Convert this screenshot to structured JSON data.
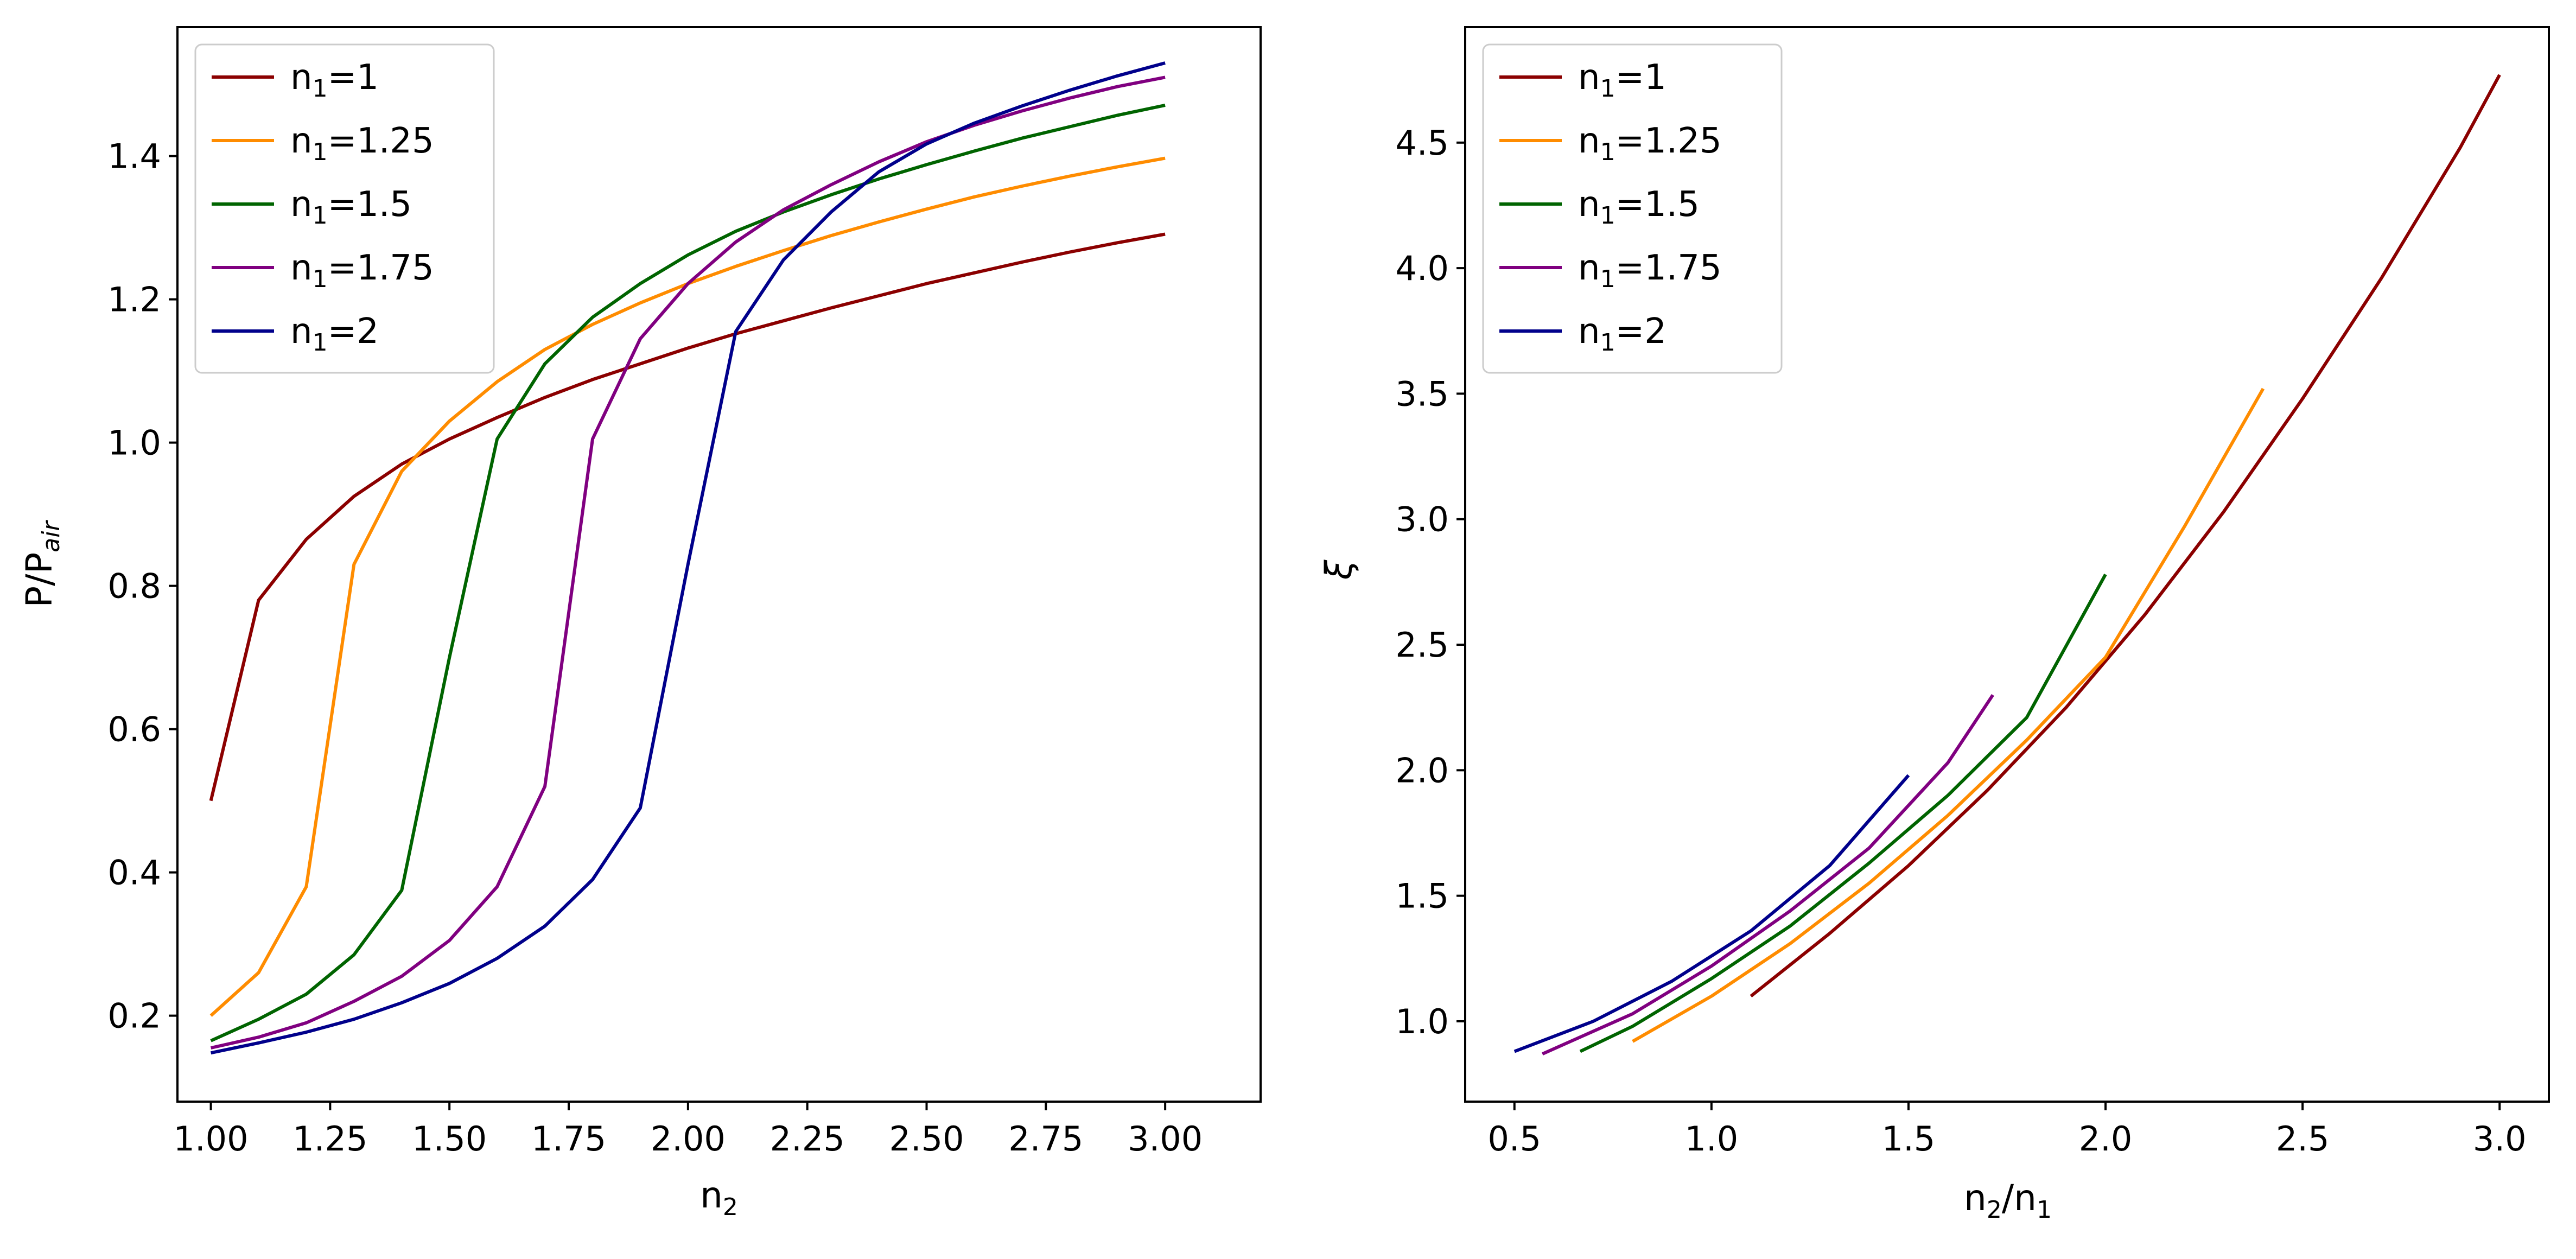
{
  "chart_data": [
    {
      "type": "line",
      "title": "",
      "xlabel": "n",
      "xlabel_sub": "2",
      "ylabel": "P/P",
      "ylabel_sub": "air",
      "xlim": [
        0.93,
        3.2
      ],
      "ylim": [
        0.08,
        1.58
      ],
      "xticks": [
        1.0,
        1.25,
        1.5,
        1.75,
        2.0,
        2.25,
        2.5,
        2.75,
        3.0
      ],
      "xtick_labels": [
        "1.00",
        "1.25",
        "1.50",
        "1.75",
        "2.00",
        "2.25",
        "2.50",
        "2.75",
        "3.00"
      ],
      "yticks": [
        0.2,
        0.4,
        0.6,
        0.8,
        1.0,
        1.2,
        1.4
      ],
      "ytick_labels": [
        "0.2",
        "0.4",
        "0.6",
        "0.8",
        "1.0",
        "1.2",
        "1.4"
      ],
      "legend_position": "top-left",
      "x": [
        1.0,
        1.1,
        1.2,
        1.3,
        1.4,
        1.5,
        1.6,
        1.7,
        1.8,
        1.9,
        2.0,
        2.1,
        2.2,
        2.3,
        2.4,
        2.5,
        2.6,
        2.7,
        2.8,
        2.9,
        3.0
      ],
      "series": [
        {
          "name": "n₁=1",
          "label_base": "n",
          "label_sub": "1",
          "label_rest": "=1",
          "color": "#8B0000",
          "values": [
            0.5,
            0.78,
            0.865,
            0.925,
            0.97,
            1.005,
            1.035,
            1.063,
            1.088,
            1.11,
            1.132,
            1.152,
            1.17,
            1.188,
            1.205,
            1.222,
            1.237,
            1.252,
            1.266,
            1.279,
            1.291
          ]
        },
        {
          "name": "n₁=1.25",
          "label_base": "n",
          "label_sub": "1",
          "label_rest": "=1.25",
          "color": "#FF8C00",
          "values": [
            0.2,
            0.26,
            0.38,
            0.83,
            0.96,
            1.03,
            1.085,
            1.13,
            1.165,
            1.195,
            1.222,
            1.246,
            1.268,
            1.289,
            1.308,
            1.326,
            1.343,
            1.358,
            1.372,
            1.385,
            1.397
          ]
        },
        {
          "name": "n₁=1.5",
          "label_base": "n",
          "label_sub": "1",
          "label_rest": "=1.5",
          "color": "#006400",
          "values": [
            0.165,
            0.195,
            0.23,
            0.285,
            0.375,
            0.7,
            1.005,
            1.11,
            1.175,
            1.222,
            1.262,
            1.295,
            1.322,
            1.346,
            1.368,
            1.388,
            1.407,
            1.425,
            1.441,
            1.457,
            1.471
          ]
        },
        {
          "name": "n₁=1.75",
          "label_base": "n",
          "label_sub": "1",
          "label_rest": "=1.75",
          "color": "#800080",
          "values": [
            0.155,
            0.17,
            0.19,
            0.22,
            0.255,
            0.305,
            0.38,
            0.52,
            1.005,
            1.145,
            1.222,
            1.28,
            1.325,
            1.36,
            1.392,
            1.42,
            1.443,
            1.463,
            1.481,
            1.497,
            1.51
          ]
        },
        {
          "name": "n₁=2",
          "label_base": "n",
          "label_sub": "1",
          "label_rest": "=2",
          "color": "#00008B",
          "values": [
            0.148,
            0.162,
            0.177,
            0.195,
            0.218,
            0.245,
            0.28,
            0.325,
            0.39,
            0.49,
            0.83,
            1.155,
            1.255,
            1.322,
            1.378,
            1.417,
            1.446,
            1.47,
            1.492,
            1.512,
            1.53
          ]
        }
      ]
    },
    {
      "type": "line",
      "title": "",
      "xlabel": "n",
      "xlabel_sub": "2",
      "xlabel_mid": "/n",
      "xlabel_sub2": "1",
      "ylabel": "ξ",
      "xlim": [
        0.375,
        3.125
      ],
      "ylim": [
        0.68,
        4.96
      ],
      "xticks": [
        0.5,
        1.0,
        1.5,
        2.0,
        2.5,
        3.0
      ],
      "xtick_labels": [
        "0.5",
        "1.0",
        "1.5",
        "2.0",
        "2.5",
        "3.0"
      ],
      "yticks": [
        1.0,
        1.5,
        2.0,
        2.5,
        3.0,
        3.5,
        4.0,
        4.5
      ],
      "ytick_labels": [
        "1.0",
        "1.5",
        "2.0",
        "2.5",
        "3.0",
        "3.5",
        "4.0",
        "4.5"
      ],
      "legend_position": "top-left",
      "series": [
        {
          "name": "n₁=1",
          "label_base": "n",
          "label_sub": "1",
          "label_rest": "=1",
          "color": "#8B0000",
          "x": [
            1.1,
            1.3,
            1.5,
            1.7,
            1.9,
            2.1,
            2.3,
            2.5,
            2.7,
            2.9,
            3.0
          ],
          "values": [
            1.1,
            1.35,
            1.62,
            1.92,
            2.25,
            2.62,
            3.03,
            3.48,
            3.96,
            4.48,
            4.77
          ]
        },
        {
          "name": "n₁=1.25",
          "label_base": "n",
          "label_sub": "1",
          "label_rest": "=1.25",
          "color": "#FF8C00",
          "x": [
            0.8,
            1.0,
            1.2,
            1.4,
            1.6,
            1.8,
            2.0,
            2.2,
            2.4
          ],
          "values": [
            0.92,
            1.1,
            1.31,
            1.55,
            1.82,
            2.12,
            2.45,
            2.97,
            3.52
          ]
        },
        {
          "name": "n₁=1.5",
          "label_base": "n",
          "label_sub": "1",
          "label_rest": "=1.5",
          "color": "#006400",
          "x": [
            0.667,
            0.8,
            1.0,
            1.2,
            1.4,
            1.6,
            1.8,
            2.0
          ],
          "values": [
            0.88,
            0.98,
            1.17,
            1.38,
            1.63,
            1.9,
            2.21,
            2.78
          ]
        },
        {
          "name": "n₁=1.75",
          "label_base": "n",
          "label_sub": "1",
          "label_rest": "=1.75",
          "color": "#800080",
          "x": [
            0.571,
            0.8,
            1.0,
            1.2,
            1.4,
            1.6,
            1.714
          ],
          "values": [
            0.87,
            1.03,
            1.22,
            1.44,
            1.69,
            2.03,
            2.3
          ]
        },
        {
          "name": "n₁=2",
          "label_base": "n",
          "label_sub": "1",
          "label_rest": "=2",
          "color": "#00008B",
          "x": [
            0.5,
            0.7,
            0.9,
            1.1,
            1.3,
            1.5
          ],
          "values": [
            0.88,
            1.0,
            1.16,
            1.36,
            1.62,
            1.98
          ]
        }
      ]
    }
  ]
}
